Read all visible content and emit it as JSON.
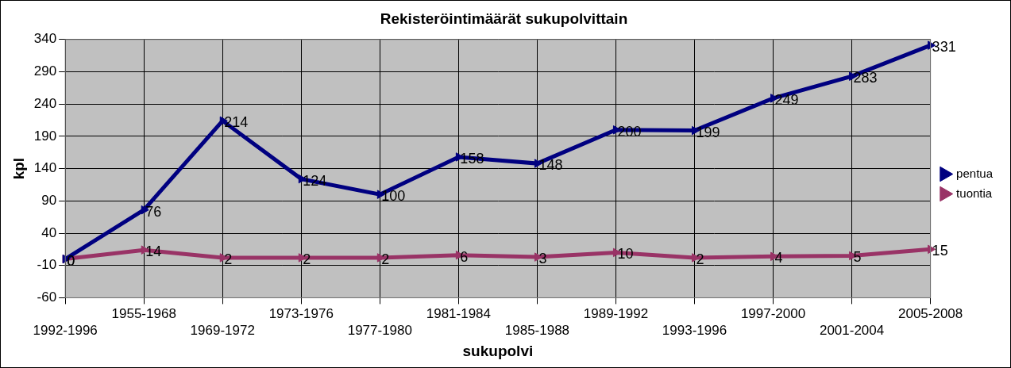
{
  "chart_data": {
    "type": "line",
    "title": "Rekisteröintimäärät sukupolvittain",
    "x_label": "sukupolvi",
    "y_label": "kpl",
    "categories": [
      "1992-1996",
      "1955-1968",
      "1969-1972",
      "1973-1976",
      "1977-1980",
      "1981-1984",
      "1985-1988",
      "1989-1992",
      "1993-1996",
      "1997-2000",
      "2001-2004",
      "2005-2008"
    ],
    "series": [
      {
        "name": "pentua",
        "color": "#000080",
        "marker": "triangle",
        "values": [
          0,
          76,
          214,
          124,
          100,
          158,
          148,
          200,
          199,
          249,
          283,
          331
        ]
      },
      {
        "name": "tuontia",
        "color": "#993366",
        "marker": "triangle",
        "values": [
          0,
          14,
          2,
          2,
          2,
          6,
          3,
          10,
          2,
          4,
          5,
          15
        ]
      }
    ],
    "ylim": [
      -60,
      340
    ],
    "yticks": [
      -60,
      -10,
      40,
      90,
      140,
      190,
      240,
      290,
      340
    ],
    "grid": true,
    "legend": "right",
    "data_labels": true
  }
}
